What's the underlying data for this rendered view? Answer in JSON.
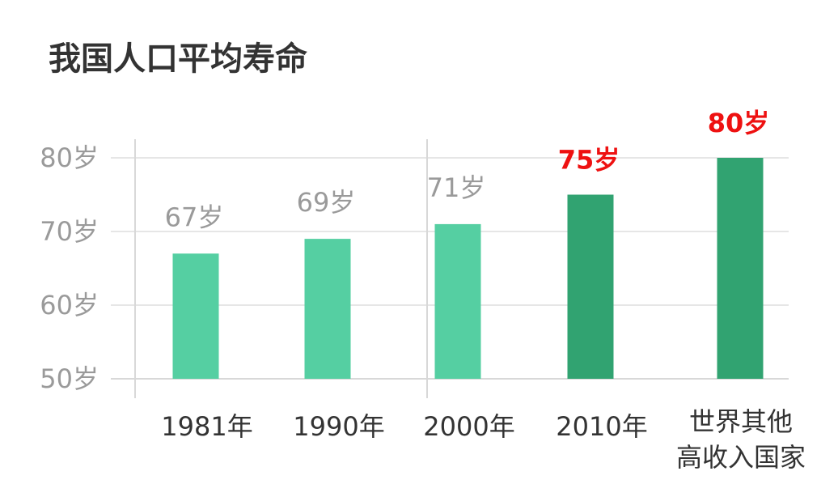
{
  "chart_data": {
    "type": "bar",
    "title": "我国人口平均寿命",
    "categories": [
      "1981年",
      "1990年",
      "2000年",
      "2010年",
      "世界其他高收入国家"
    ],
    "category_lines": [
      [
        "1981年"
      ],
      [
        "1990年"
      ],
      [
        "2000年"
      ],
      [
        "2010年"
      ],
      [
        "世界其他",
        "高收入国家"
      ]
    ],
    "values": [
      67,
      69,
      71,
      75,
      80
    ],
    "data_labels": [
      "67岁",
      "69岁",
      "71岁",
      "75岁",
      "80岁"
    ],
    "y_ticks": [
      50,
      60,
      70,
      80
    ],
    "y_tick_labels": [
      "50岁",
      "60岁",
      "70岁",
      "80岁"
    ],
    "ylim": [
      50,
      80
    ],
    "grid": true,
    "colors": {
      "bar_light": "#55cfa2",
      "bar_dark": "#31a371",
      "label_gray": "#9a9a9a",
      "label_red": "#ee1111",
      "grid": "#e6e6e6",
      "axis": "#d8d8d8"
    },
    "highlight_indices": [
      3,
      4
    ]
  }
}
